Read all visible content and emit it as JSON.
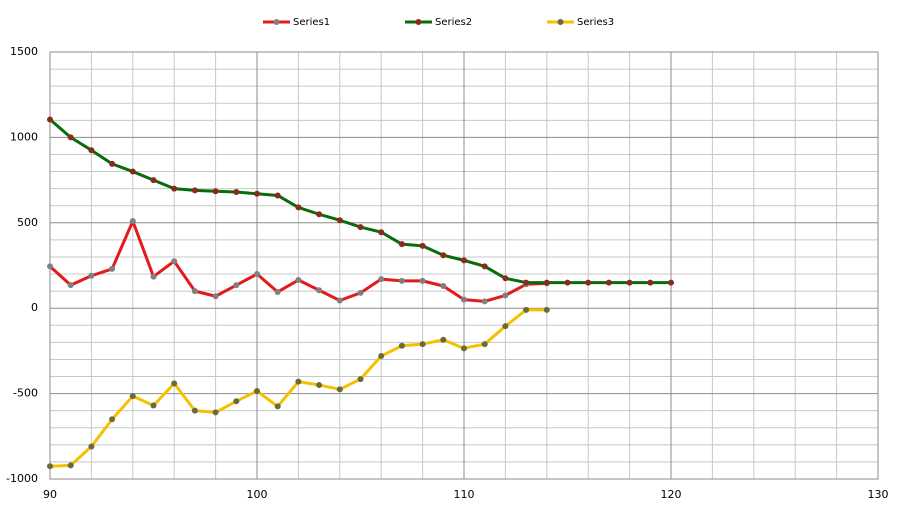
{
  "chart_data": {
    "type": "line",
    "x": [
      90,
      91,
      92,
      93,
      94,
      95,
      96,
      97,
      98,
      99,
      100,
      101,
      102,
      103,
      104,
      105,
      106,
      107,
      108,
      109,
      110,
      111,
      112,
      113,
      114,
      115,
      116,
      117,
      118,
      119,
      120
    ],
    "series": [
      {
        "name": "Series1",
        "color": "#e31a1c",
        "marker_color": "#808080",
        "values": [
          245,
          135,
          190,
          230,
          510,
          185,
          275,
          100,
          70,
          135,
          200,
          95,
          165,
          105,
          45,
          90,
          170,
          160,
          160,
          130,
          50,
          40,
          75,
          140,
          145,
          null,
          null,
          null,
          null,
          null,
          null
        ]
      },
      {
        "name": "Series2",
        "color": "#0a6b0a",
        "marker_color": "#8b2a1a",
        "values": [
          1105,
          1000,
          925,
          845,
          800,
          750,
          700,
          690,
          685,
          680,
          670,
          660,
          590,
          550,
          515,
          475,
          445,
          375,
          365,
          310,
          280,
          245,
          175,
          150,
          150,
          150,
          150,
          150,
          150,
          150,
          150
        ]
      },
      {
        "name": "Series3",
        "color": "#f5c000",
        "marker_color": "#6b6b3a",
        "values": [
          -925,
          -920,
          -810,
          -650,
          -515,
          -570,
          -440,
          -600,
          -610,
          -545,
          -485,
          -575,
          -430,
          -450,
          -475,
          -415,
          -280,
          -220,
          -210,
          -185,
          -235,
          -210,
          -105,
          -10,
          -10,
          null,
          null,
          null,
          null,
          null,
          null
        ]
      }
    ],
    "xlim": [
      90,
      130
    ],
    "xticks": [
      90,
      100,
      110,
      120,
      130
    ],
    "xminorticks": [
      92,
      94,
      96,
      98,
      102,
      104,
      106,
      108,
      112,
      114,
      116,
      118,
      122,
      124,
      126,
      128
    ],
    "ylim": [
      -1000,
      1500
    ],
    "yticks": [
      -1000,
      -500,
      0,
      500,
      1000,
      1500
    ],
    "yminorticks": [
      -900,
      -800,
      -700,
      -600,
      -400,
      -300,
      -200,
      -100,
      100,
      200,
      300,
      400,
      600,
      700,
      800,
      900,
      1100,
      1200,
      1300,
      1400
    ],
    "grid": true,
    "legend": "top"
  }
}
